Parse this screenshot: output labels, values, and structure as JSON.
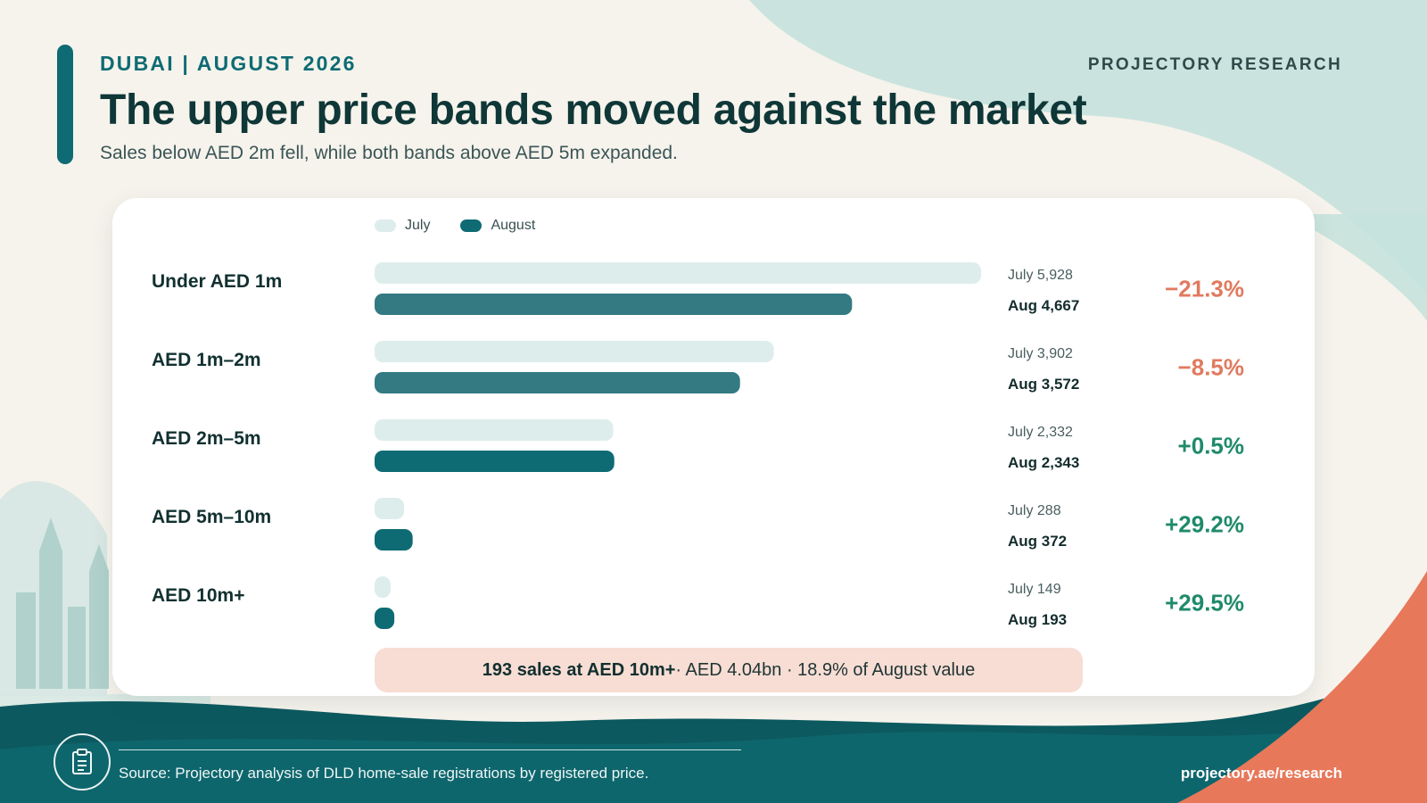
{
  "header": {
    "eyebrow": "DUBAI | AUGUST 2026",
    "brand": "PROJECTORY RESEARCH",
    "title": "The upper price bands moved against the market",
    "subtitle": "Sales below AED 2m fell, while both bands above AED 5m expanded."
  },
  "legend": {
    "july": "July",
    "august": "August"
  },
  "colors": {
    "july": "#ddedeb",
    "august": "#0e6b73",
    "negative": "#e07a5f",
    "positive": "#1f8a6a",
    "accent": "#e8785a"
  },
  "chart_data": {
    "type": "bar",
    "orientation": "horizontal",
    "categories": [
      "Under AED 1m",
      "AED 1m–2m",
      "AED 2m–5m",
      "AED 5m–10m",
      "AED 10m+"
    ],
    "series": [
      {
        "name": "July",
        "values": [
          5928,
          3902,
          2332,
          288,
          149
        ]
      },
      {
        "name": "August",
        "values": [
          4667,
          3572,
          2343,
          372,
          193
        ]
      }
    ],
    "value_labels": {
      "july": [
        "July 5,928",
        "July 3,902",
        "July 2,332",
        "July 288",
        "July 149"
      ],
      "august": [
        "Aug 4,667",
        "Aug 3,572",
        "Aug 2,343",
        "Aug 372",
        "Aug 193"
      ]
    },
    "changes": [
      "−21.3%",
      "−8.5%",
      "+0.5%",
      "+29.2%",
      "+29.5%"
    ],
    "change_direction": [
      "down",
      "down",
      "up",
      "up",
      "up"
    ],
    "xlim": [
      0,
      5928
    ],
    "legend_position": "top-left",
    "grid": false
  },
  "callout": {
    "bold": "193 sales at AED 10m+",
    "rest": "· AED 4.04bn · 18.9% of August value"
  },
  "footer": {
    "icon": "document-icon",
    "source": "Source: Projectory analysis of DLD home-sale registrations by registered price.",
    "url": "projectory.ae/research"
  }
}
